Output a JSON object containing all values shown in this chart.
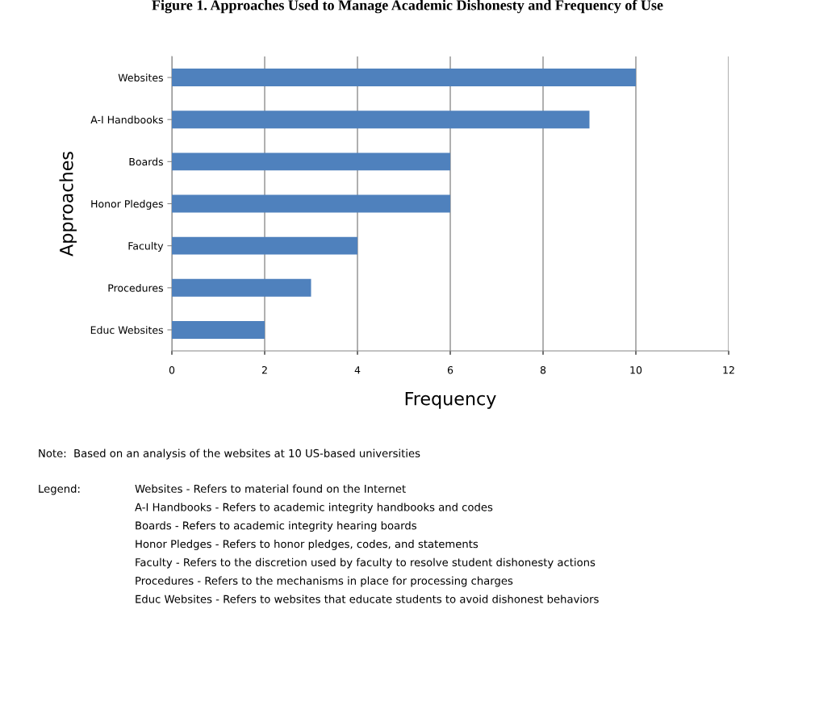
{
  "chart_data": {
    "type": "bar",
    "orientation": "horizontal",
    "title": "Figure 1. Approaches Used to Manage Academic Dishonesty and Frequency of Use",
    "xlabel": "Frequency",
    "ylabel": "Approaches",
    "categories": [
      "Websites",
      "A-I Handbooks",
      "Boards",
      "Honor Pledges",
      "Faculty",
      "Procedures",
      "Educ Websites"
    ],
    "values": [
      10,
      9,
      6,
      6,
      4,
      3,
      2
    ],
    "color": "#4f81bd",
    "xlim": [
      0,
      12
    ],
    "xticks": [
      0,
      2,
      4,
      6,
      8,
      10,
      12
    ],
    "grid": "x",
    "annotations": [
      "Note:  Based on an analysis of the websites at 10 US-based universities",
      "Legend:",
      "Websites - Refers to material found on the Internet",
      "A-I Handbooks - Refers to academic integrity handbooks and codes",
      "Boards - Refers to academic integrity hearing boards",
      "Honor Pledges - Refers to honor pledges, codes, and statements",
      "Faculty - Refers to the discretion used by faculty to resolve student dishonesty actions",
      "Procedures - Refers to the mechanisms in place for processing charges",
      "Educ Websites - Refers to websites that educate students to avoid dishonest behaviors"
    ]
  }
}
